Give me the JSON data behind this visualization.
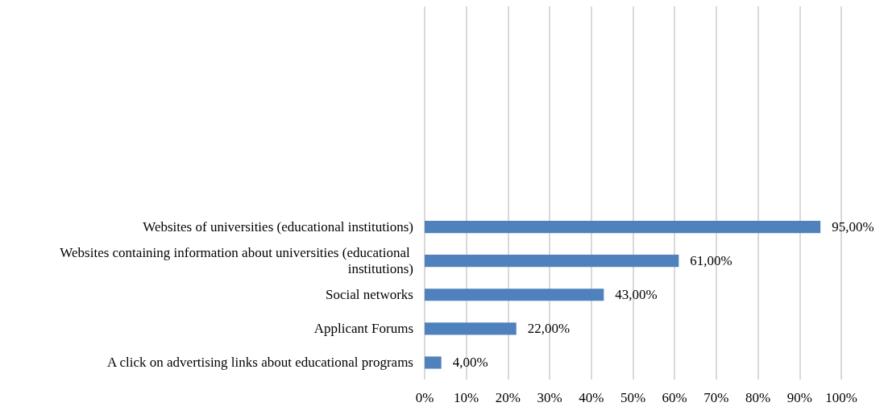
{
  "chart_data": {
    "type": "bar",
    "orientation": "horizontal",
    "categories": [
      null,
      null,
      null,
      null,
      null,
      null,
      "Websites of universities (educational institutions)",
      "Websites containing information about universities (educational institutions)",
      "Social networks",
      "Applicant Forums",
      "A click on advertising links about educational programs"
    ],
    "values": [
      null,
      null,
      null,
      null,
      null,
      null,
      95,
      61,
      43,
      22,
      4
    ],
    "value_labels": [
      null,
      null,
      null,
      null,
      null,
      null,
      "95,00%",
      "61,00%",
      "43,00%",
      "22,00%",
      "4,00%"
    ],
    "color": "#4f81bd",
    "xlim": [
      0,
      100
    ],
    "xticks": [
      {
        "value": 0,
        "label": "0%"
      },
      {
        "value": 10,
        "label": "10%"
      },
      {
        "value": 20,
        "label": "20%"
      },
      {
        "value": 30,
        "label": "30%"
      },
      {
        "value": 40,
        "label": "40%"
      },
      {
        "value": 50,
        "label": "50%"
      },
      {
        "value": 60,
        "label": "60%"
      },
      {
        "value": 70,
        "label": "70%"
      },
      {
        "value": 80,
        "label": "80%"
      },
      {
        "value": 90,
        "label": "90%"
      },
      {
        "value": 100,
        "label": "100%"
      }
    ],
    "grid": "x"
  }
}
